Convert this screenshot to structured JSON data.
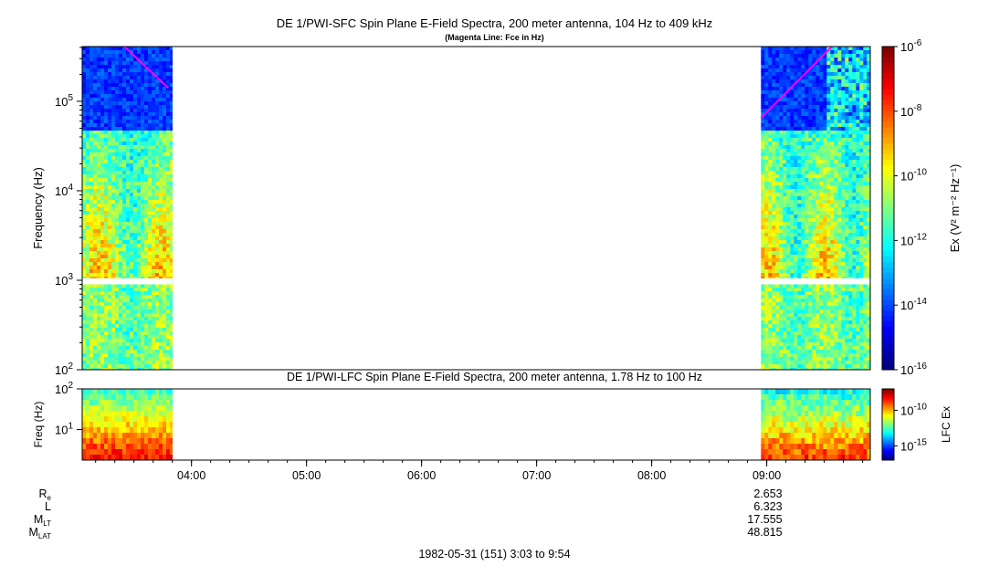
{
  "window": {
    "width_note": ""
  },
  "top_panel": {
    "title": "DE 1/PWI-SFC  Spin Plane E-Field Spectra, 200 meter antenna, 104 Hz to 409 kHz",
    "subtitle": "(Magenta Line: Fce in Hz)",
    "ylabel": "Frequency (Hz)",
    "colorbar_label": "Ex (V² m⁻² Hz⁻¹)",
    "ytick_base": "10",
    "yticks": [
      {
        "exp": "2",
        "value": 100
      },
      {
        "exp": "3",
        "value": 1000
      },
      {
        "exp": "4",
        "value": 10000
      },
      {
        "exp": "5",
        "value": 100000
      }
    ],
    "colorbar_ticks": [
      {
        "exp": "-6",
        "value": 1e-06
      },
      {
        "exp": "-8",
        "value": 1e-08
      },
      {
        "exp": "-10",
        "value": 1e-10
      },
      {
        "exp": "-12",
        "value": 1e-12
      },
      {
        "exp": "-14",
        "value": 1e-14
      },
      {
        "exp": "-16",
        "value": 1e-16
      }
    ]
  },
  "bottom_panel": {
    "title": "DE 1/PWI-LFC  Spin Plane E-Field Spectra, 200 meter antenna, 1.78 Hz to 100 Hz",
    "ylabel": "Freq (Hz)",
    "colorbar_label": "LFC Ex",
    "yticks": [
      {
        "base": "10",
        "exp": "2",
        "value": 100
      },
      {
        "base": "10",
        "exp": "1",
        "value": 10
      }
    ],
    "colorbar_ticks": [
      {
        "base": "10",
        "exp": "-10",
        "value": 1e-10
      },
      {
        "base": "10",
        "exp": "-15",
        "value": 1e-15
      }
    ]
  },
  "time_axis": {
    "ticks": [
      "04:00",
      "05:00",
      "06:00",
      "07:00",
      "08:00",
      "09:00"
    ]
  },
  "ephemeris": {
    "rows": [
      {
        "label": "R",
        "sub": "e",
        "value": "2.653"
      },
      {
        "label": "L",
        "sub": "",
        "value": "6.323"
      },
      {
        "label": "M",
        "sub": "LT",
        "value": "17.555"
      },
      {
        "label": "M",
        "sub": "LAT",
        "value": "48.815"
      }
    ]
  },
  "footer": {
    "date_range": "1982-05-31 (151) 3:03 to 9:54"
  },
  "colors": {
    "magenta_line": "#ff00ff",
    "background": "#ffffff"
  },
  "chart_data": [
    {
      "type": "heatmap",
      "title": "DE 1/PWI-SFC  Spin Plane E-Field Spectra, 200 meter antenna, 104 Hz to 409 kHz",
      "xlabel": "",
      "ylabel": "Frequency (Hz)",
      "y_scale": "log",
      "ylim": [
        100,
        409000
      ],
      "x_range": [
        "03:03",
        "09:54"
      ],
      "data_intervals": [
        [
          "03:03",
          "03:50"
        ],
        [
          "08:57",
          "09:54"
        ]
      ],
      "colorbar": {
        "label": "Ex (V² m⁻² Hz⁻¹)",
        "scale": "log",
        "range": [
          1e-16,
          1e-06
        ]
      },
      "overlay_line": {
        "name": "Fce in Hz",
        "color": "magenta",
        "segments": [
          [
            [
              "03:25",
              409000
            ],
            [
              "03:48",
              140000
            ]
          ],
          [
            [
              "08:57",
              65000
            ],
            [
              "09:34",
              409000
            ]
          ]
        ]
      },
      "gap_band_hz": [
        900,
        1050
      ]
    },
    {
      "type": "heatmap",
      "title": "DE 1/PWI-LFC  Spin Plane E-Field Spectra, 200 meter antenna, 1.78 Hz to 100 Hz",
      "ylabel": "Freq (Hz)",
      "y_scale": "log",
      "ylim": [
        1.78,
        100
      ],
      "data_intervals": [
        [
          "03:03",
          "03:50"
        ],
        [
          "08:57",
          "09:54"
        ]
      ],
      "colorbar": {
        "label": "LFC Ex",
        "scale": "log",
        "range": [
          1e-17,
          1e-07
        ]
      }
    }
  ]
}
